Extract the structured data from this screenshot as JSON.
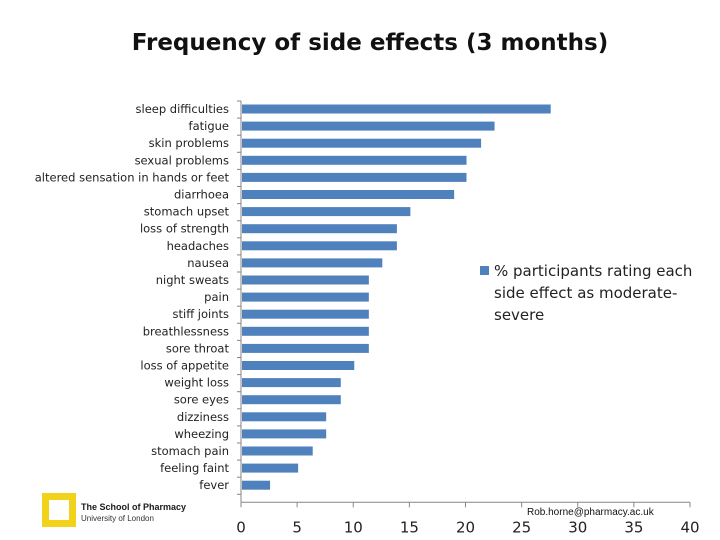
{
  "chart_data": {
    "type": "bar",
    "orientation": "horizontal",
    "title": "Frequency of side effects (3 months)",
    "categories": [
      "sleep difficulties",
      "fatigue",
      "skin problems",
      "sexual problems",
      "altered sensation in hands or feet",
      "diarrhoea",
      "stomach upset",
      "loss of strength",
      "headaches",
      "nausea",
      "night sweats",
      "pain",
      "stiff joints",
      "breathlessness",
      "sore throat",
      "loss of appetite",
      "weight loss",
      "sore eyes",
      "dizziness",
      "wheezing",
      "stomach pain",
      "feeling faint",
      "fever"
    ],
    "series": [
      {
        "name": "% participants rating each side effect as moderate-severe",
        "values": [
          27.5,
          22.5,
          21.3,
          20,
          20,
          18.9,
          15,
          13.8,
          13.8,
          12.5,
          11.3,
          11.3,
          11.3,
          11.3,
          11.3,
          10,
          8.8,
          8.8,
          7.5,
          7.5,
          6.3,
          5,
          2.5
        ]
      }
    ],
    "xlim": [
      0,
      40
    ],
    "xticks": [
      "0",
      "5",
      "10",
      "15",
      "20",
      "25",
      "30",
      "35",
      "40"
    ],
    "xlabel": "",
    "ylabel": "",
    "legend_position": "right",
    "grid": false,
    "bar_color": "#4f81bd"
  },
  "legend": {
    "line1": "% participants rating each",
    "line2": "side effect as moderate-",
    "line3": "severe"
  },
  "footer": {
    "logo_name": "The School of Pharmacy",
    "logo_sub": "University of London",
    "email": "Rob.horne@pharmacy.ac.uk"
  }
}
